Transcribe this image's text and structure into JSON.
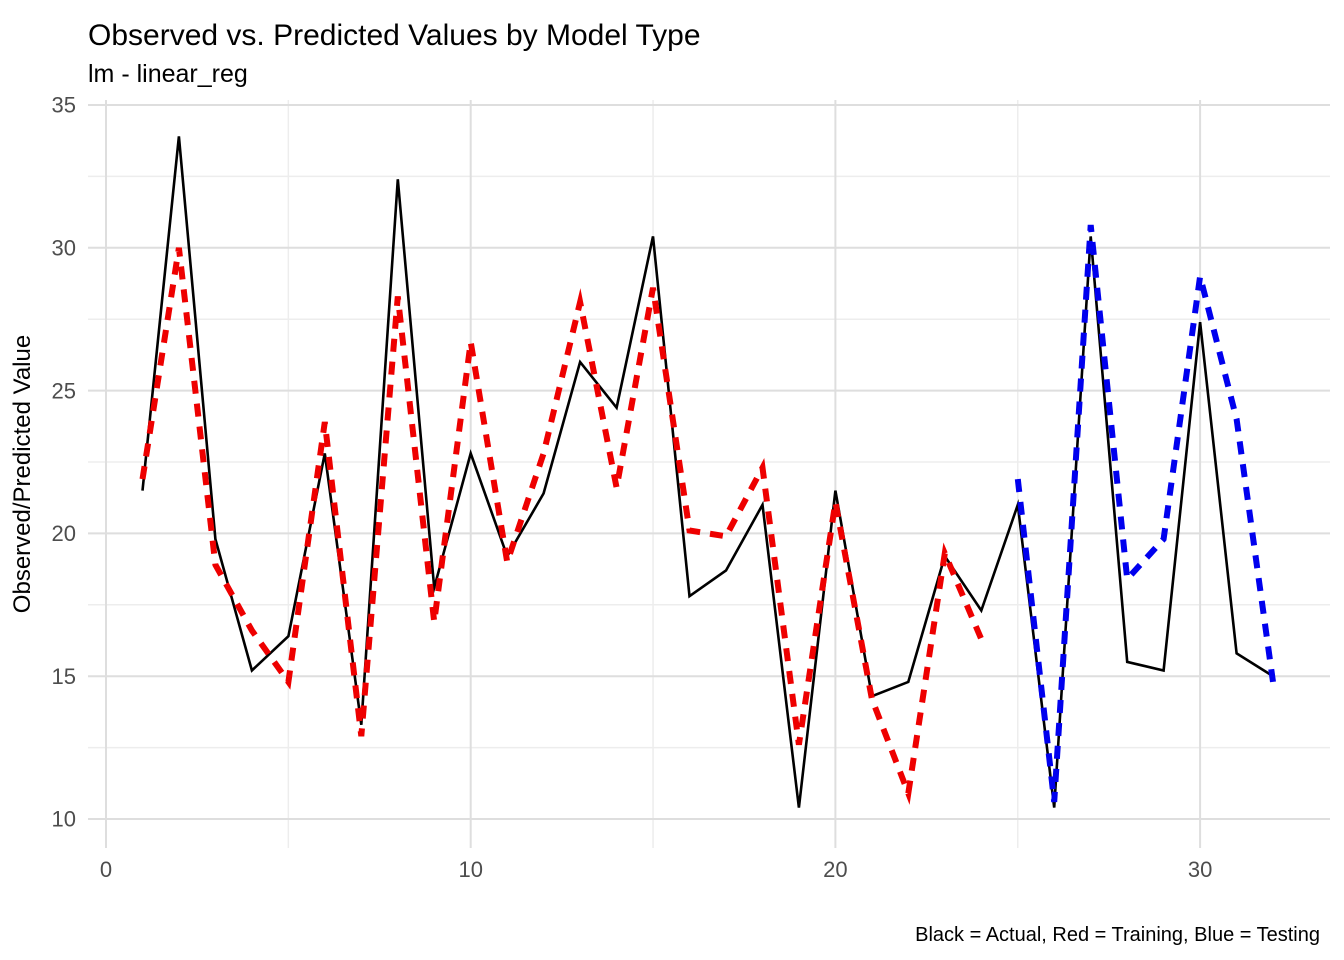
{
  "chart_data": {
    "type": "line",
    "title": "Observed vs. Predicted Values by Model Type",
    "subtitle": "lm - linear_reg",
    "xlabel": "",
    "ylabel": "Observed/Predicted Value",
    "caption": "Black = Actual, Red = Training, Blue = Testing",
    "xlim": [
      -0.5,
      33.6
    ],
    "ylim": [
      9.0,
      35.2
    ],
    "x_ticks": [
      0,
      10,
      20,
      30
    ],
    "y_ticks": [
      10,
      15,
      20,
      25,
      30,
      35
    ],
    "x_minor": [
      5,
      15,
      25
    ],
    "y_minor": [
      12.5,
      17.5,
      22.5,
      27.5,
      32.5
    ],
    "grid": true,
    "legend_position": "none",
    "colors": {
      "actual": "#000000",
      "training": "#ee0000",
      "testing": "#0000ee",
      "grid_major": "#dedede",
      "grid_minor": "#ededed",
      "tick_label": "#4d4d4d"
    },
    "series": [
      {
        "name": "Actual",
        "color_key": "actual",
        "style": "solid",
        "x": [
          1,
          2,
          3,
          4,
          5,
          6,
          7,
          8,
          9,
          10,
          11,
          12,
          13,
          14,
          15,
          16,
          17,
          18,
          19,
          20,
          21,
          22,
          23,
          24,
          25,
          26,
          27,
          28,
          29,
          30,
          31,
          32
        ],
        "values": [
          21.5,
          33.9,
          19.8,
          15.2,
          16.4,
          22.8,
          13.3,
          32.4,
          18.1,
          22.8,
          19.2,
          21.4,
          26.0,
          24.4,
          30.4,
          17.8,
          18.7,
          21.0,
          10.4,
          21.5,
          14.3,
          14.8,
          19.2,
          17.3,
          21.0,
          10.4,
          30.4,
          15.5,
          15.2,
          27.4,
          15.8,
          15.0
        ]
      },
      {
        "name": "Training",
        "color_key": "training",
        "style": "dashed",
        "x": [
          1,
          2,
          3,
          4,
          5,
          6,
          7,
          8,
          9,
          10,
          11,
          12,
          13,
          14,
          15,
          16,
          17,
          18,
          19,
          20,
          21,
          22,
          23,
          24
        ],
        "values": [
          21.9,
          30.0,
          18.9,
          16.6,
          14.8,
          23.9,
          12.9,
          28.3,
          16.9,
          26.7,
          19.0,
          22.8,
          28.1,
          21.6,
          28.6,
          20.1,
          19.9,
          22.3,
          12.6,
          21.1,
          14.2,
          10.9,
          19.3,
          16.3
        ]
      },
      {
        "name": "Testing",
        "color_key": "testing",
        "style": "dashed",
        "x": [
          25,
          26,
          27,
          28,
          29,
          30,
          31,
          32
        ],
        "values": [
          21.9,
          10.6,
          30.8,
          18.4,
          19.8,
          29.0,
          24.0,
          14.8
        ]
      }
    ]
  }
}
